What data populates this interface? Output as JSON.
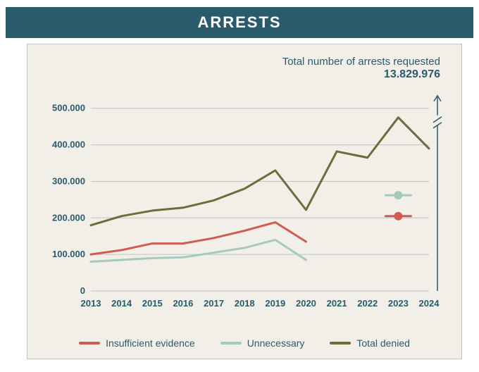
{
  "header": {
    "title": "ARRESTS",
    "bg_color": "#2a5b6b",
    "text_color": "#ffffff",
    "title_fontsize": 22
  },
  "frame": {
    "bg_color": "#f2efe8",
    "border_color": "#b9c6c4"
  },
  "annotation": {
    "line1": "Total number of arrests requested",
    "line2": "13.829.976",
    "arrow_color": "#2a5b6b"
  },
  "chart": {
    "type": "line",
    "x_categories": [
      "2013",
      "2014",
      "2015",
      "2016",
      "2017",
      "2018",
      "2019",
      "2020",
      "2021",
      "2022",
      "2023",
      "2024"
    ],
    "y_ticks": [
      0,
      100000,
      200000,
      300000,
      400000,
      500000
    ],
    "y_tick_labels": [
      "0",
      "100.000",
      "200.000",
      "300.000",
      "400.000",
      "500.000"
    ],
    "ylim": [
      0,
      540000
    ],
    "grid_color": "#b9c6c4",
    "grid_width": 1,
    "axis_label_color": "#2a5b6b",
    "axis_label_fontsize": 13,
    "axis_label_fontweight": "700",
    "line_width": 3,
    "series": [
      {
        "name": "Insufficient evidence",
        "color": "#cf5b52",
        "values": [
          100000,
          112000,
          130000,
          130000,
          145000,
          165000,
          188000,
          135000,
          null,
          null,
          null,
          null
        ],
        "marker_at": {
          "x": "2023",
          "y": 205000
        }
      },
      {
        "name": "Unnecessary",
        "color": "#a7c8bf",
        "values": [
          80000,
          85000,
          90000,
          92000,
          105000,
          118000,
          140000,
          85000,
          null,
          null,
          null,
          null
        ],
        "marker_at": {
          "x": "2023",
          "y": 262000
        }
      },
      {
        "name": "Total denied",
        "color": "#6b6e3b",
        "values": [
          180000,
          205000,
          220000,
          228000,
          248000,
          280000,
          330000,
          222000,
          382000,
          365000,
          475000,
          390000
        ],
        "marker_at": null
      }
    ],
    "marker_radius": 6,
    "legend_fontsize": 14,
    "legend_color": "#2a5b6b"
  }
}
